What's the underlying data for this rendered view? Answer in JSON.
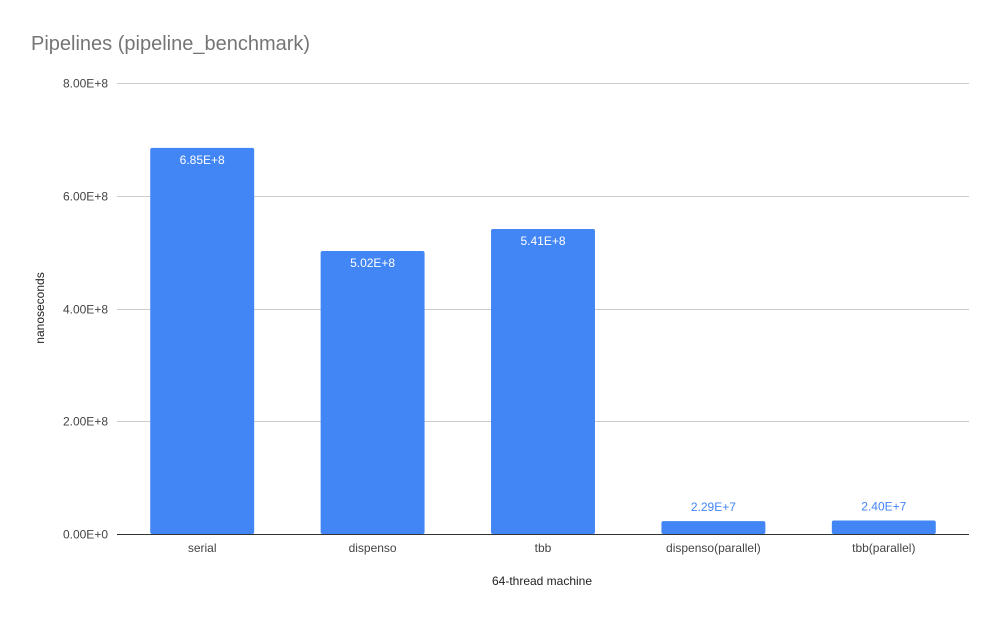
{
  "chart_data": {
    "type": "bar",
    "title": "Pipelines (pipeline_benchmark)",
    "xlabel": "64-thread machine",
    "ylabel": "nanoseconds",
    "categories": [
      "serial",
      "dispenso",
      "tbb",
      "dispenso(parallel)",
      "tbb(parallel)"
    ],
    "values": [
      685000000,
      502000000,
      541000000,
      22900000,
      24000000
    ],
    "value_labels": [
      "6.85E+8",
      "5.02E+8",
      "5.41E+8",
      "2.29E+7",
      "2.40E+7"
    ],
    "ylim": [
      0,
      800000000
    ],
    "yticks": [
      0,
      200000000,
      400000000,
      600000000,
      800000000
    ],
    "ytick_labels": [
      "0.00E+0",
      "2.00E+8",
      "4.00E+8",
      "6.00E+8",
      "8.00E+8"
    ],
    "grid": true,
    "bar_color": "#4285f4",
    "inside_label_color": "#ffffff",
    "outside_label_color": "#4285f4"
  }
}
